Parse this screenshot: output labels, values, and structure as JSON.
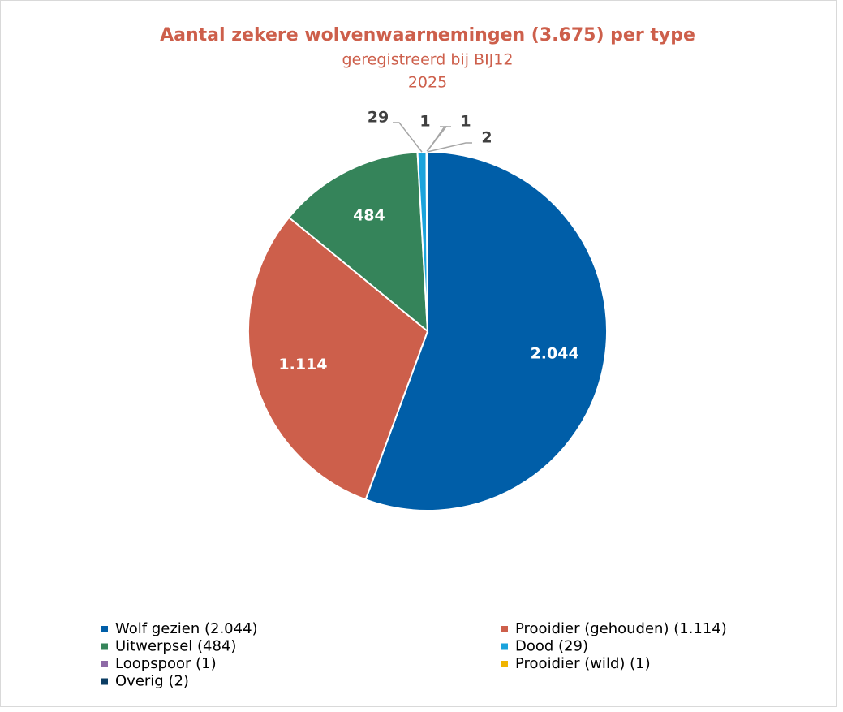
{
  "chart_data": {
    "type": "pie",
    "title": "Aantal zekere wolvenwaarnemingen (3.675) per type",
    "subtitle": [
      "geregistreerd bij BIJ12",
      "2025"
    ],
    "categories": [
      "Wolf gezien (2.044)",
      "Prooidier (gehouden) (1.114)",
      "Uitwerpsel (484)",
      "Dood (29)",
      "Loopspoor (1)",
      "Prooidier (wild) (1)",
      "Overig (2)"
    ],
    "values": [
      2044,
      1114,
      484,
      29,
      1,
      1,
      2
    ],
    "value_labels": [
      "2.044",
      "1.114",
      "484",
      "29",
      "1",
      "1",
      "2"
    ],
    "colors": [
      "#005ea8",
      "#cd5f4b",
      "#35845a",
      "#1aa3dc",
      "#8e6aa6",
      "#f0b400",
      "#0b3d63"
    ],
    "legend": "bottom"
  }
}
